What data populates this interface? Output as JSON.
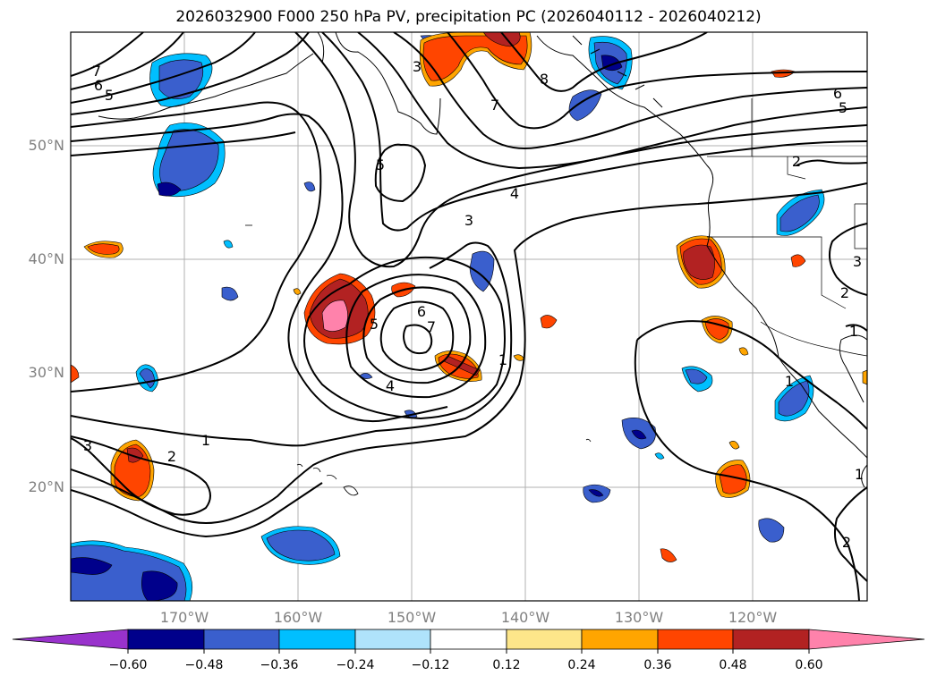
{
  "title": "2026032900 F000 250 hPa PV, precipitation PC (2026040112 - 2026040212)",
  "lat_labels": [
    "50°N",
    "40°N",
    "30°N",
    "20°N"
  ],
  "lon_labels": [
    "170°W",
    "160°W",
    "150°W",
    "140°W",
    "130°W",
    "120°W"
  ],
  "contour_labels": [
    {
      "text": "7",
      "where": "nw"
    },
    {
      "text": "6",
      "where": "nw"
    },
    {
      "text": "5",
      "where": "nw"
    },
    {
      "text": "3",
      "where": "gulf"
    },
    {
      "text": "7",
      "where": "gulf"
    },
    {
      "text": "8",
      "where": "gulf"
    },
    {
      "text": "5",
      "where": "cutoff-n"
    },
    {
      "text": "4",
      "where": "jet"
    },
    {
      "text": "3",
      "where": "jet"
    },
    {
      "text": "6",
      "where": "ne"
    },
    {
      "text": "5",
      "where": "ne"
    },
    {
      "text": "6",
      "where": "low"
    },
    {
      "text": "7",
      "where": "low"
    },
    {
      "text": "5",
      "where": "low"
    },
    {
      "text": "4",
      "where": "low"
    },
    {
      "text": "1",
      "where": "low"
    },
    {
      "text": "1",
      "where": "sw"
    },
    {
      "text": "2",
      "where": "sw"
    },
    {
      "text": "3",
      "where": "sw"
    },
    {
      "text": "3",
      "where": "east"
    },
    {
      "text": "2",
      "where": "east"
    },
    {
      "text": "1",
      "where": "east"
    },
    {
      "text": "1",
      "where": "east"
    },
    {
      "text": "1",
      "where": "east"
    },
    {
      "text": "2",
      "where": "se"
    },
    {
      "text": "2",
      "where": "ne-corner"
    }
  ],
  "colorbar": {
    "ticks": [
      "−0.60",
      "−0.48",
      "−0.36",
      "−0.24",
      "−0.12",
      "0.12",
      "0.24",
      "0.36",
      "0.48",
      "0.60"
    ],
    "colors": [
      "#9932cc",
      "#00008b",
      "#3a5fcd",
      "#00bfff",
      "#afe3fb",
      "#ffffff",
      "#fde68a",
      "#ffa500",
      "#ff4500",
      "#b22222",
      "#ff82ab"
    ]
  }
}
